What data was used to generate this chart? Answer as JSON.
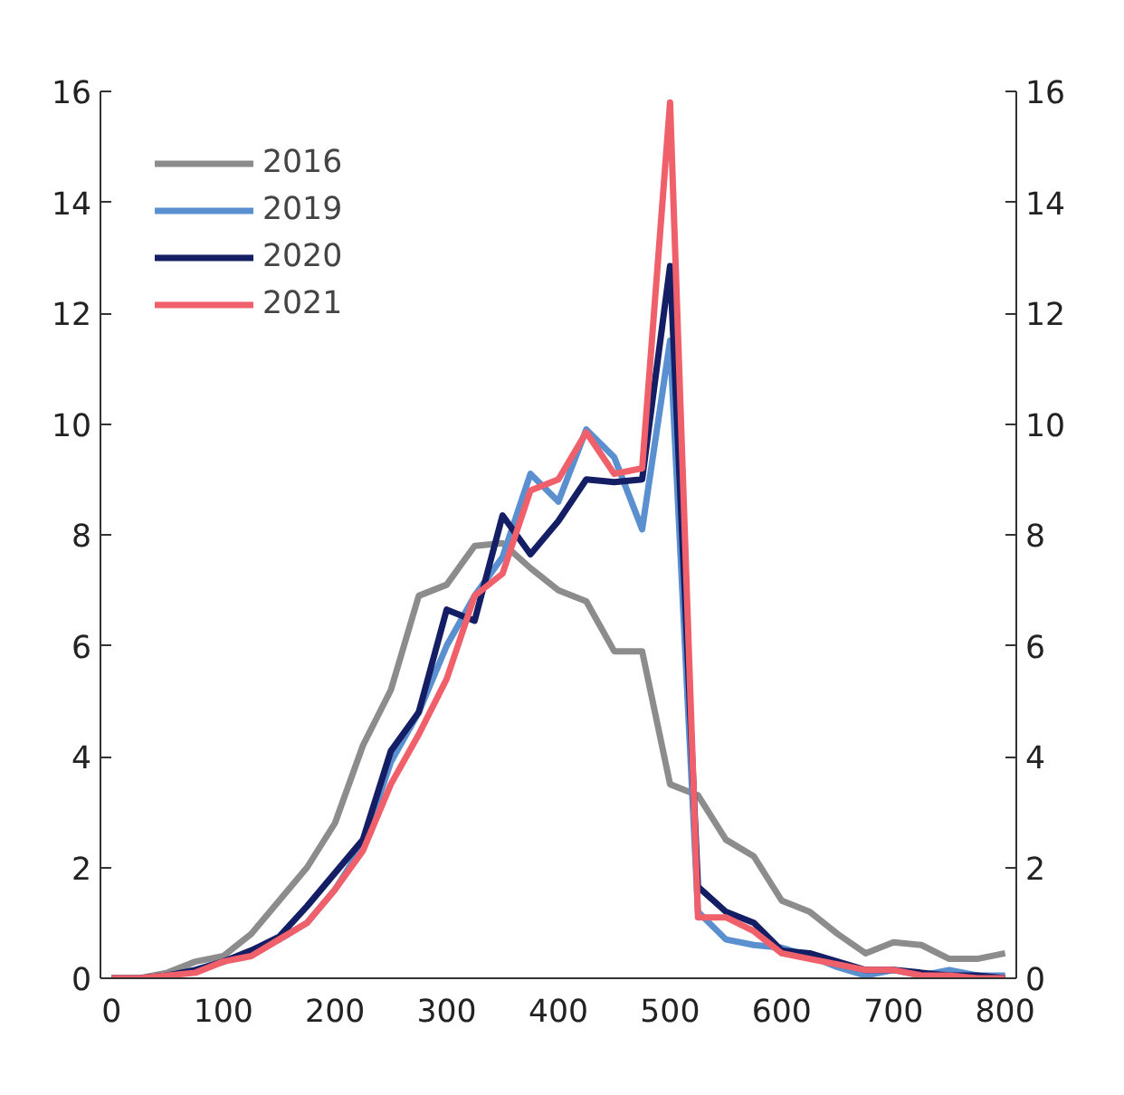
{
  "chart_data": {
    "type": "line",
    "x": [
      0,
      25,
      50,
      75,
      100,
      125,
      150,
      175,
      200,
      225,
      250,
      275,
      300,
      325,
      350,
      375,
      400,
      425,
      450,
      475,
      500,
      525,
      550,
      575,
      600,
      625,
      650,
      675,
      700,
      725,
      750,
      775,
      800
    ],
    "series": [
      {
        "name": "2016",
        "color": "#8c8c8c",
        "values": [
          0,
          0,
          0.1,
          0.3,
          0.4,
          0.8,
          1.4,
          2.0,
          2.8,
          4.2,
          5.2,
          6.9,
          7.1,
          7.8,
          7.85,
          7.4,
          7.0,
          6.8,
          5.9,
          5.9,
          3.5,
          3.3,
          2.5,
          2.2,
          1.4,
          1.2,
          0.8,
          0.45,
          0.65,
          0.6,
          0.35,
          0.35,
          0.45
        ]
      },
      {
        "name": "2019",
        "color": "#5a8fd0",
        "values": [
          null,
          null,
          0.05,
          0.15,
          0.3,
          0.5,
          0.7,
          1.0,
          1.6,
          2.4,
          3.9,
          4.8,
          6.0,
          6.9,
          7.6,
          9.1,
          8.6,
          9.9,
          9.4,
          8.1,
          11.5,
          1.2,
          0.7,
          0.6,
          0.55,
          0.4,
          0.2,
          0.05,
          0.15,
          0.05,
          0.15,
          0.05,
          0.05
        ]
      },
      {
        "name": "2020",
        "color": "#141e64",
        "values": [
          0,
          0,
          0.05,
          0.15,
          0.3,
          0.5,
          0.75,
          1.3,
          1.9,
          2.5,
          4.1,
          4.8,
          6.65,
          6.45,
          8.35,
          7.65,
          8.25,
          9.0,
          8.95,
          9.0,
          12.85,
          1.65,
          1.2,
          1.0,
          0.5,
          0.45,
          0.3,
          0.15,
          0.15,
          0.1,
          0.05,
          0.05,
          0.0
        ]
      },
      {
        "name": "2021",
        "color": "#f0606a",
        "values": [
          0,
          0,
          0.05,
          0.1,
          0.3,
          0.4,
          0.7,
          1.0,
          1.6,
          2.3,
          3.5,
          4.4,
          5.4,
          6.9,
          7.3,
          8.8,
          9.0,
          9.85,
          9.1,
          9.2,
          15.8,
          1.1,
          1.1,
          0.85,
          0.45,
          0.35,
          0.25,
          0.15,
          0.15,
          0.05,
          0.05,
          0.0,
          0.0
        ]
      }
    ],
    "xlim": [
      -10,
      810
    ],
    "xticks": [
      0,
      100,
      200,
      300,
      400,
      500,
      600,
      700,
      800
    ],
    "ylim": [
      0,
      16
    ],
    "yticks": [
      0,
      2,
      4,
      6,
      8,
      10,
      12,
      14,
      16
    ],
    "y2lim": [
      0,
      16
    ],
    "y2ticks": [
      0,
      2,
      4,
      6,
      8,
      10,
      12,
      14,
      16
    ],
    "grid": false,
    "legend": "top left",
    "line_style": "solid",
    "marker": "none"
  }
}
